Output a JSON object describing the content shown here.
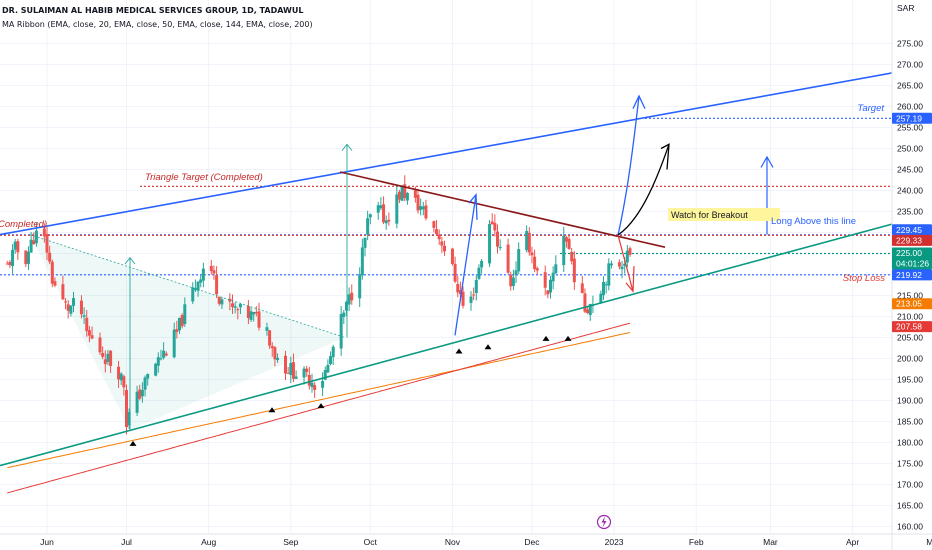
{
  "header": {
    "symbol_title": "DR. SULAIMAN AL HABIB MEDICAL SERVICES GROUP, 1D, TADAWUL",
    "indicator": "MA Ribbon (EMA, close, 20, EMA, close, 50, EMA, close, 144, EMA, close, 200)"
  },
  "currency": "SAR",
  "chart_data": {
    "type": "candlestick",
    "x_tick_labels": [
      "Jun",
      "Jul",
      "Aug",
      "Sep",
      "Oct",
      "Nov",
      "Dec",
      "2023",
      "Feb",
      "Mar",
      "Apr",
      "Ma"
    ],
    "y_tick_labels": [
      "160.00",
      "165.00",
      "170.00",
      "175.00",
      "180.00",
      "185.00",
      "190.00",
      "195.00",
      "200.00",
      "205.00",
      "210.00",
      "215.00",
      "220.00",
      "225.00",
      "230.00",
      "235.00",
      "240.00",
      "245.00",
      "250.00",
      "255.00",
      "260.00",
      "265.00",
      "270.00",
      "275.00"
    ],
    "ylim": [
      158,
      283
    ],
    "price_labels": [
      {
        "value": 257.19,
        "text": "257.19",
        "color": "#2962ff"
      },
      {
        "value": 229.45,
        "text": "229.45",
        "color": "#2962ff"
      },
      {
        "value": 229.33,
        "text": "229.33",
        "color": "#d32f2f"
      },
      {
        "value": 225.0,
        "text": "225.00",
        "sub": "04:01:26",
        "color": "#089981"
      },
      {
        "value": 219.92,
        "text": "219.92",
        "color": "#2962ff"
      },
      {
        "value": 213.05,
        "text": "213.05",
        "color": "#f57c00"
      },
      {
        "value": 207.58,
        "text": "207.58",
        "color": "#e53935"
      }
    ],
    "horizontal_levels": [
      {
        "value": 257.19,
        "color": "#2962ff"
      },
      {
        "value": 241.0,
        "color": "#d32f2f"
      },
      {
        "value": 229.45,
        "color": "#2962ff"
      },
      {
        "value": 229.33,
        "color": "#d32f2f"
      },
      {
        "value": 225.0,
        "color": "#089981"
      },
      {
        "value": 219.92,
        "color": "#2962ff"
      }
    ],
    "annotations": [
      {
        "text": "Target",
        "color": "#2962ff"
      },
      {
        "text": "Triangle Target (Completed)",
        "color": "#c62828"
      },
      {
        "text": "Completed)",
        "color": "#c62828"
      },
      {
        "text": "Watch for Breakout",
        "color": "#131722",
        "background": "#fff59d"
      },
      {
        "text": "Long Above this line",
        "color": "#2962ff"
      },
      {
        "text": "Stop Loss",
        "color": "#e53935"
      }
    ],
    "moving_averages": [
      "EMA 20",
      "EMA 50",
      "EMA 144",
      "EMA 200"
    ],
    "trend_lines": [
      "upper channel (blue)",
      "triangle resistance (dark red)",
      "rising support (green)"
    ],
    "last_price": 225.0,
    "countdown": "04:01:26"
  }
}
